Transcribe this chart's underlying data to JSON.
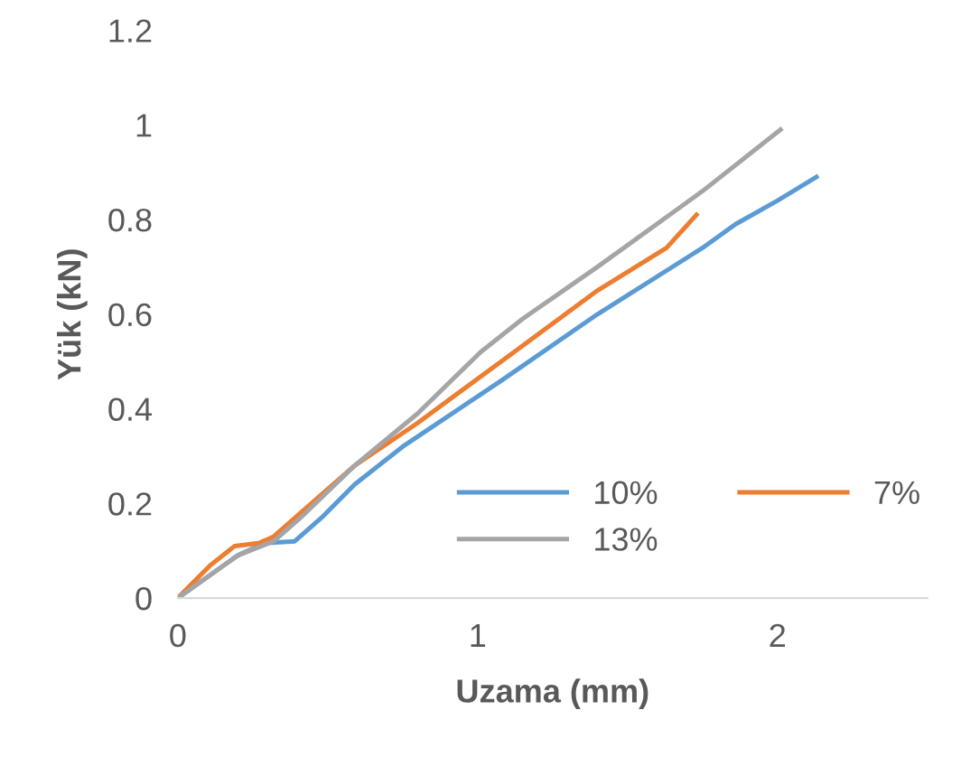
{
  "chart_data": {
    "type": "line",
    "xlabel": "Uzama (mm)",
    "ylabel": "Yük (kN)",
    "xlim": [
      0,
      2.5
    ],
    "xticks": [
      0,
      1,
      2
    ],
    "ylim": [
      0,
      1.2
    ],
    "yticks": [
      0,
      0.2,
      0.4,
      0.6,
      0.8,
      1,
      1.2
    ],
    "grid": false,
    "legend": "bottom right",
    "marker": "none",
    "line_style": "solid",
    "series": [
      {
        "name": "10%",
        "color": "#5b9bd5",
        "x": [
          0,
          0.2,
          0.29,
          0.39,
          0.48,
          0.59,
          0.75,
          1.08,
          1.4,
          1.75,
          1.86,
          2.0,
          2.13
        ],
        "values": [
          0,
          0.09,
          0.116,
          0.12,
          0.17,
          0.24,
          0.32,
          0.46,
          0.6,
          0.74,
          0.79,
          0.84,
          0.89
        ]
      },
      {
        "name": "7%",
        "color": "#ed7d31",
        "x": [
          0,
          0.11,
          0.19,
          0.27,
          0.32,
          0.41,
          0.59,
          0.8,
          1.1,
          1.4,
          1.63,
          1.73
        ],
        "values": [
          0,
          0.07,
          0.11,
          0.116,
          0.13,
          0.18,
          0.28,
          0.37,
          0.51,
          0.65,
          0.74,
          0.81
        ]
      },
      {
        "name": "13%",
        "color": "#a5a5a5",
        "x": [
          0,
          0.2,
          0.32,
          0.41,
          0.59,
          0.8,
          1.01,
          1.15,
          1.4,
          1.75,
          2.01
        ],
        "values": [
          0,
          0.09,
          0.12,
          0.17,
          0.28,
          0.39,
          0.52,
          0.59,
          0.7,
          0.86,
          0.99
        ]
      }
    ]
  }
}
